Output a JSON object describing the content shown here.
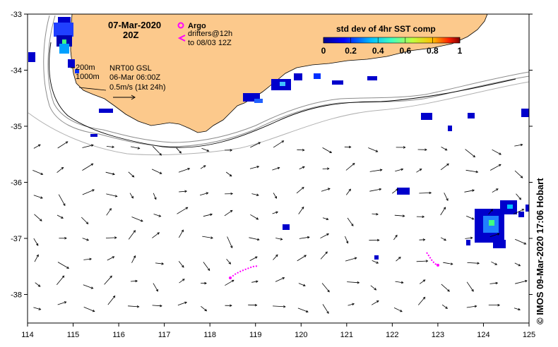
{
  "map": {
    "date": "07-Mar-2020",
    "hour": "20Z",
    "argo_label": "Argo",
    "drifters_line1": "drifters@12h",
    "drifters_line2": "to 08/03 12Z",
    "contour_200": "200m",
    "contour_1000": "1000m",
    "product": "NRT00 GSL",
    "product_time": "06-Mar 06:00Z",
    "arrow_scale": "0.5m/s (1kt 24h)",
    "colorbar_title": "std dev of 4hr SST comp",
    "colorbar_ticks": [
      "0",
      "0.2",
      "0.4",
      "0.6",
      "0.8",
      "1"
    ],
    "credit": "© IMOS 09-Mar-2020 17:06 Hobart",
    "lon_ticks": [
      "114",
      "115",
      "116",
      "117",
      "118",
      "119",
      "120",
      "121",
      "122",
      "123",
      "124",
      "125"
    ],
    "lat_ticks": [
      "-33",
      "-34",
      "-35",
      "-36",
      "-37",
      "-38"
    ],
    "colors": {
      "land": "#fcc98c",
      "ocean": "#ffffff",
      "drifter": "#ff00ff",
      "arrow": "#000000"
    }
  }
}
